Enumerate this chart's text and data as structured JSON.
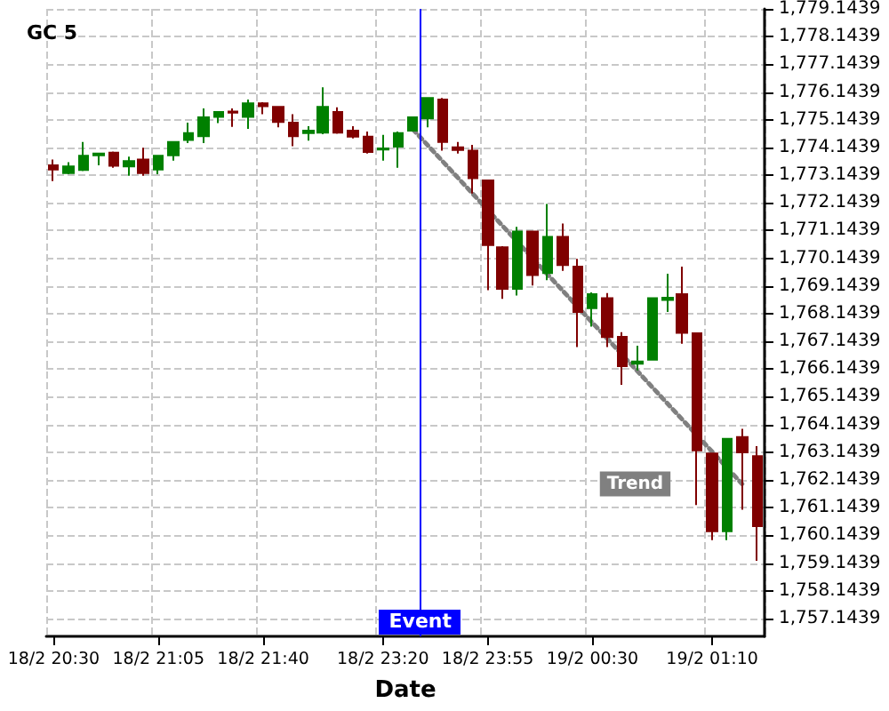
{
  "chart_data": {
    "type": "candlestick",
    "title": "GC 5",
    "xlabel": "Date",
    "categories": [
      "18/2 20:30",
      null,
      null,
      null,
      null,
      null,
      null,
      "18/2 21:05",
      null,
      null,
      null,
      null,
      null,
      null,
      "18/2 21:40",
      null,
      null,
      null,
      null,
      null,
      null,
      null,
      "18/2 23:20",
      null,
      null,
      null,
      null,
      null,
      null,
      "18/2 23:55",
      null,
      null,
      null,
      null,
      null,
      null,
      "19/2 00:30",
      null,
      null,
      null,
      null,
      null,
      null,
      null,
      "19/2 01:10",
      null,
      null,
      null
    ],
    "ohlc": [
      [
        1773.5,
        1773.71,
        1772.93,
        1773.35
      ],
      [
        1773.22,
        1773.61,
        1773.18,
        1773.46
      ],
      [
        1773.33,
        1774.34,
        1773.29,
        1773.84
      ],
      [
        1773.86,
        1773.96,
        1773.5,
        1773.92
      ],
      [
        1773.96,
        1774.0,
        1773.41,
        1773.48
      ],
      [
        1773.46,
        1773.81,
        1773.12,
        1773.65
      ],
      [
        1773.71,
        1774.13,
        1773.12,
        1773.22
      ],
      [
        1773.35,
        1773.84,
        1773.18,
        1773.84
      ],
      [
        1773.86,
        1774.34,
        1773.67,
        1774.34
      ],
      [
        1774.41,
        1775.04,
        1774.3,
        1774.66
      ],
      [
        1774.55,
        1775.55,
        1774.3,
        1775.23
      ],
      [
        1775.25,
        1775.42,
        1775.02,
        1775.42
      ],
      [
        1775.44,
        1775.55,
        1774.89,
        1775.4
      ],
      [
        1775.25,
        1775.87,
        1774.81,
        1775.74
      ],
      [
        1775.74,
        1775.78,
        1775.34,
        1775.63
      ],
      [
        1775.61,
        1775.61,
        1774.87,
        1775.06
      ],
      [
        1775.04,
        1775.34,
        1774.19,
        1774.55
      ],
      [
        1774.66,
        1774.91,
        1774.39,
        1774.75
      ],
      [
        1774.68,
        1776.31,
        1774.62,
        1775.61
      ],
      [
        1775.42,
        1775.59,
        1774.64,
        1774.68
      ],
      [
        1774.75,
        1774.91,
        1774.47,
        1774.53
      ],
      [
        1774.53,
        1774.72,
        1773.92,
        1773.98
      ],
      [
        1774.07,
        1774.6,
        1773.67,
        1774.11
      ],
      [
        1774.17,
        1774.72,
        1773.41,
        1774.66
      ],
      [
        1774.75,
        1775.23,
        1774.75,
        1775.23
      ],
      [
        1775.19,
        1775.93,
        1774.87,
        1775.93
      ],
      [
        1775.87,
        1775.93,
        1774.03,
        1774.34
      ],
      [
        1774.15,
        1774.34,
        1773.92,
        1774.05
      ],
      [
        1774.03,
        1774.24,
        1772.48,
        1773.03
      ],
      [
        1772.95,
        1772.95,
        1768.99,
        1770.62
      ],
      [
        1770.54,
        1770.58,
        1768.68,
        1769.04
      ],
      [
        1769.04,
        1771.28,
        1768.8,
        1771.11
      ],
      [
        1771.11,
        1771.11,
        1769.16,
        1769.54
      ],
      [
        1769.61,
        1772.1,
        1769.35,
        1770.92
      ],
      [
        1770.92,
        1771.4,
        1769.69,
        1769.9
      ],
      [
        1769.84,
        1770.12,
        1766.94,
        1768.21
      ],
      [
        1768.34,
        1768.91,
        1767.68,
        1768.85
      ],
      [
        1768.7,
        1768.89,
        1766.94,
        1767.3
      ],
      [
        1767.31,
        1767.48,
        1765.58,
        1766.25
      ],
      [
        1766.34,
        1766.99,
        1766.1,
        1766.42
      ],
      [
        1766.48,
        1768.7,
        1766.48,
        1768.7
      ],
      [
        1768.64,
        1769.59,
        1768.21,
        1768.72
      ],
      [
        1768.85,
        1769.84,
        1767.06,
        1767.45
      ],
      [
        1767.44,
        1767.44,
        1761.24,
        1763.21
      ],
      [
        1763.1,
        1763.1,
        1759.97,
        1760.29
      ],
      [
        1760.29,
        1763.63,
        1759.97,
        1763.63
      ],
      [
        1763.69,
        1763.99,
        1761.07,
        1763.14
      ],
      [
        1763.0,
        1763.36,
        1759.23,
        1760.48
      ]
    ],
    "colors": [
      "#800000",
      "#008000",
      "#008000",
      "#008000",
      "#800000",
      "#008000",
      "#800000",
      "#008000",
      "#008000",
      "#008000",
      "#008000",
      "#008000",
      "#800000",
      "#008000",
      "#800000",
      "#800000",
      "#800000",
      "#008000",
      "#008000",
      "#800000",
      "#800000",
      "#800000",
      "#008000",
      "#008000",
      "#008000",
      "#008000",
      "#800000",
      "#800000",
      "#800000",
      "#800000",
      "#800000",
      "#008000",
      "#800000",
      "#008000",
      "#800000",
      "#800000",
      "#008000",
      "#800000",
      "#800000",
      "#008000",
      "#008000",
      "#008000",
      "#800000",
      "#800000",
      "#800000",
      "#008000",
      "#800000",
      "#800000"
    ],
    "series": [
      {
        "type": "line",
        "name": "Trend",
        "color": "#808080",
        "line_style": "dotted",
        "marker": "none",
        "values": [
          null,
          null,
          null,
          null,
          null,
          null,
          null,
          null,
          null,
          null,
          null,
          null,
          null,
          null,
          null,
          null,
          null,
          null,
          null,
          null,
          null,
          null,
          null,
          null,
          1774.8,
          null,
          null,
          null,
          null,
          null,
          null,
          null,
          null,
          null,
          null,
          null,
          null,
          null,
          null,
          null,
          null,
          null,
          null,
          null,
          null,
          null,
          1762.0,
          null
        ]
      }
    ],
    "annotations": [
      "Event"
    ],
    "ylim": [
      1756.5,
      1779.1439
    ],
    "yticks": [
      {
        "value": 1757.1439,
        "label": "1,757.1439"
      },
      {
        "value": 1758.1439,
        "label": "1,758.1439"
      },
      {
        "value": 1759.1439,
        "label": "1,759.1439"
      },
      {
        "value": 1760.1439,
        "label": "1,760.1439"
      },
      {
        "value": 1761.1439,
        "label": "1,761.1439"
      },
      {
        "value": 1762.1439,
        "label": "1,762.1439"
      },
      {
        "value": 1763.1439,
        "label": "1,763.1439"
      },
      {
        "value": 1764.1439,
        "label": "1,764.1439"
      },
      {
        "value": 1765.1439,
        "label": "1,765.1439"
      },
      {
        "value": 1766.1439,
        "label": "1,766.1439"
      },
      {
        "value": 1767.1439,
        "label": "1,767.1439"
      },
      {
        "value": 1768.1439,
        "label": "1,768.1439"
      },
      {
        "value": 1769.1439,
        "label": "1,769.1439"
      },
      {
        "value": 1770.1439,
        "label": "1,770.1439"
      },
      {
        "value": 1771.1439,
        "label": "1,771.1439"
      },
      {
        "value": 1772.1439,
        "label": "1,772.1439"
      },
      {
        "value": 1773.1439,
        "label": "1,773.1439"
      },
      {
        "value": 1774.1439,
        "label": "1,774.1439"
      },
      {
        "value": 1775.1439,
        "label": "1,775.1439"
      },
      {
        "value": 1776.1439,
        "label": "1,776.1439"
      },
      {
        "value": 1777.1439,
        "label": "1,777.1439"
      },
      {
        "value": 1778.1439,
        "label": "1,778.1439"
      },
      {
        "value": 1779.1439,
        "label": "1,779.1439"
      }
    ],
    "grid": true,
    "legend": false
  }
}
